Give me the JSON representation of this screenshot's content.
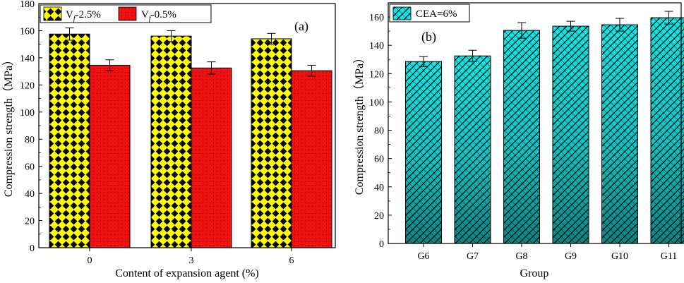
{
  "chart_data": [
    {
      "type": "bar",
      "panel_label": "(a)",
      "xlabel": "Content of expansion agent (%)",
      "ylabel": "Compression strength（MPa）",
      "ylim": [
        0,
        180
      ],
      "yticks": [
        0,
        20,
        40,
        60,
        80,
        100,
        120,
        140,
        160,
        180
      ],
      "categories": [
        "0",
        "3",
        "6"
      ],
      "legend_position": "top",
      "series": [
        {
          "name": "Vf-2.5%",
          "legend_main": "V",
          "legend_sub": "f",
          "legend_rest": "-2.5%",
          "pattern": "yellow-black-dots",
          "color": "#ffff00",
          "values": [
            157.5,
            156,
            154
          ],
          "errors": [
            4.5,
            4,
            4
          ]
        },
        {
          "name": "Vf-0.5%",
          "legend_main": "V",
          "legend_sub": "f",
          "legend_rest": "-0.5%",
          "pattern": "red-dots",
          "color": "#ee1111",
          "values": [
            134.5,
            132.5,
            130.5
          ],
          "errors": [
            4,
            4.5,
            4
          ]
        }
      ]
    },
    {
      "type": "bar",
      "panel_label": "(b)",
      "xlabel": "Group",
      "ylabel": "Compression strength（MPa）",
      "ylim": [
        0,
        170
      ],
      "yticks": [
        0,
        20,
        40,
        60,
        80,
        100,
        120,
        140,
        160
      ],
      "categories": [
        "G6",
        "G7",
        "G8",
        "G9",
        "G10",
        "G11"
      ],
      "legend_position": "top-left",
      "series": [
        {
          "name": "CEA=6%",
          "pattern": "cyan-crosshatch",
          "color": "#16e4e4",
          "values": [
            128.5,
            132.5,
            150.5,
            153.5,
            154.5,
            159.5
          ],
          "errors": [
            3.5,
            4,
            5.5,
            3.5,
            4.5,
            4.5
          ]
        }
      ]
    }
  ]
}
